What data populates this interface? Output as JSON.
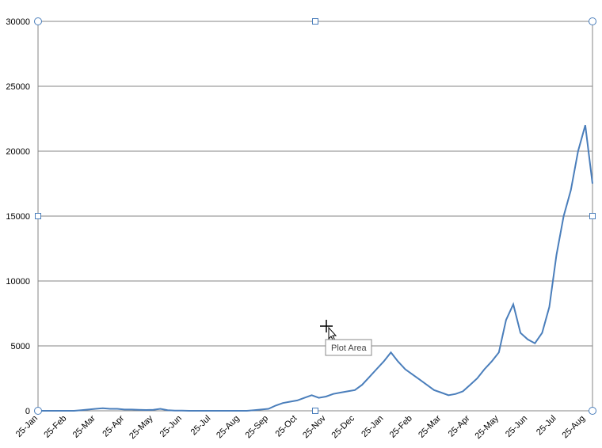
{
  "chart_data": {
    "type": "line",
    "categories": [
      "25-Jan",
      null,
      null,
      null,
      "25-Feb",
      null,
      null,
      null,
      "25-Mar",
      null,
      null,
      null,
      "25-Apr",
      null,
      null,
      null,
      "25-May",
      null,
      null,
      null,
      "25-Jun",
      null,
      null,
      null,
      "25-Jul",
      null,
      null,
      null,
      "25-Aug",
      null,
      null,
      null,
      "25-Sep",
      null,
      null,
      null,
      "25-Oct",
      null,
      null,
      null,
      "25-Nov",
      null,
      null,
      null,
      "25-Dec",
      null,
      null,
      null,
      "25-Jan",
      null,
      null,
      null,
      "25-Feb",
      null,
      null,
      null,
      "25-Mar",
      null,
      null,
      null,
      "25-Apr",
      null,
      null,
      null,
      "25-May",
      null,
      null,
      null,
      "25-Jun",
      null,
      null,
      null,
      "25-Jul",
      null,
      null,
      null,
      "25-Aug",
      null
    ],
    "series": [
      {
        "color": "#4a7ebb",
        "values": [
          0,
          0,
          0,
          0,
          0,
          0,
          50,
          100,
          150,
          200,
          150,
          150,
          100,
          100,
          80,
          60,
          80,
          150,
          50,
          20,
          10,
          0,
          0,
          0,
          0,
          0,
          0,
          0,
          0,
          0,
          50,
          100,
          150,
          400,
          600,
          700,
          800,
          1000,
          1200,
          1000,
          1100,
          1300,
          1400,
          1500,
          1600,
          2000,
          2600,
          3200,
          3800,
          4500,
          3800,
          3200,
          2800,
          2400,
          2000,
          1600,
          1400,
          1200,
          1300,
          1500,
          2000,
          2500,
          3200,
          3800,
          4500,
          7000,
          8200,
          6000,
          5500,
          5200,
          6000,
          8000,
          12000,
          15000,
          17000,
          20000,
          22000,
          17500
        ]
      }
    ],
    "ylim": [
      0,
      30000
    ],
    "yticks": [
      0,
      5000,
      10000,
      15000,
      20000,
      25000,
      30000
    ],
    "grid": true,
    "tooltip": "Plot Area"
  }
}
